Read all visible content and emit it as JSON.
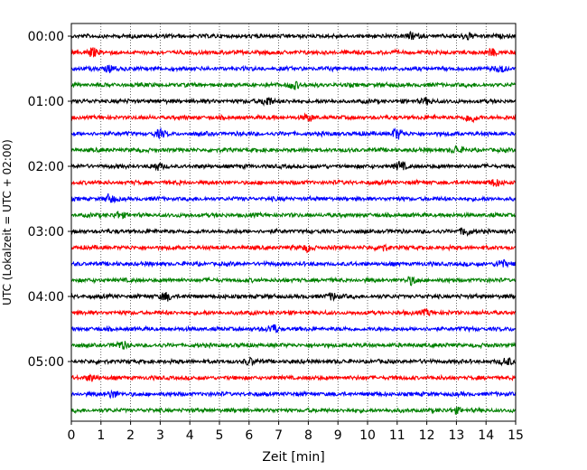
{
  "chart_data": {
    "type": "line",
    "title": "",
    "xlabel": "Zeit  [min]",
    "ylabel": "UTC (Lokalzeit = UTC + 02:00)",
    "xlim": [
      0,
      15
    ],
    "x_ticks": [
      "0",
      "1",
      "2",
      "3",
      "4",
      "5",
      "6",
      "7",
      "8",
      "9",
      "10",
      "11",
      "12",
      "13",
      "14",
      "15"
    ],
    "y_ticks": [
      "00:00",
      "01:00",
      "02:00",
      "03:00",
      "04:00",
      "05:00"
    ],
    "y_tick_rows": [
      0,
      4,
      8,
      12,
      16,
      20
    ],
    "row_count": 24,
    "vertical_grid": true,
    "grid_style": "dotted",
    "series_colors": [
      "#000000",
      "#ff0000",
      "#0000ff",
      "#008000"
    ],
    "events": [
      {
        "row": 0,
        "x": 13.4,
        "amp": 1.5
      },
      {
        "row": 0,
        "x": 11.5,
        "amp": 1.3
      },
      {
        "row": 1,
        "x": 0.7,
        "amp": 2.0
      },
      {
        "row": 1,
        "x": 14.2,
        "amp": 1.5
      },
      {
        "row": 2,
        "x": 1.3,
        "amp": 1.5
      },
      {
        "row": 2,
        "x": 14.5,
        "amp": 1.4
      },
      {
        "row": 3,
        "x": 7.5,
        "amp": 1.8
      },
      {
        "row": 4,
        "x": 6.6,
        "amp": 2.2
      },
      {
        "row": 4,
        "x": 12.0,
        "amp": 1.4
      },
      {
        "row": 5,
        "x": 13.5,
        "amp": 2.0
      },
      {
        "row": 5,
        "x": 8.0,
        "amp": 1.3
      },
      {
        "row": 6,
        "x": 11.0,
        "amp": 2.3
      },
      {
        "row": 6,
        "x": 3.0,
        "amp": 1.5
      },
      {
        "row": 7,
        "x": 13.0,
        "amp": 1.5
      },
      {
        "row": 8,
        "x": 11.1,
        "amp": 1.8
      },
      {
        "row": 8,
        "x": 2.9,
        "amp": 1.4
      },
      {
        "row": 9,
        "x": 14.3,
        "amp": 1.4
      },
      {
        "row": 10,
        "x": 1.3,
        "amp": 1.8
      },
      {
        "row": 11,
        "x": 1.6,
        "amp": 1.5
      },
      {
        "row": 12,
        "x": 13.3,
        "amp": 1.7
      },
      {
        "row": 13,
        "x": 8.0,
        "amp": 1.6
      },
      {
        "row": 13,
        "x": 10.5,
        "amp": 1.4
      },
      {
        "row": 14,
        "x": 14.5,
        "amp": 1.8
      },
      {
        "row": 15,
        "x": 11.5,
        "amp": 1.6
      },
      {
        "row": 16,
        "x": 3.2,
        "amp": 2.0
      },
      {
        "row": 16,
        "x": 8.8,
        "amp": 1.5
      },
      {
        "row": 17,
        "x": 12.0,
        "amp": 1.3
      },
      {
        "row": 18,
        "x": 6.8,
        "amp": 2.0
      },
      {
        "row": 19,
        "x": 1.7,
        "amp": 1.6
      },
      {
        "row": 20,
        "x": 6.0,
        "amp": 1.4
      },
      {
        "row": 20,
        "x": 14.7,
        "amp": 1.6
      },
      {
        "row": 21,
        "x": 0.7,
        "amp": 1.5
      },
      {
        "row": 22,
        "x": 1.4,
        "amp": 1.6
      },
      {
        "row": 23,
        "x": 13.0,
        "amp": 1.2
      }
    ]
  }
}
